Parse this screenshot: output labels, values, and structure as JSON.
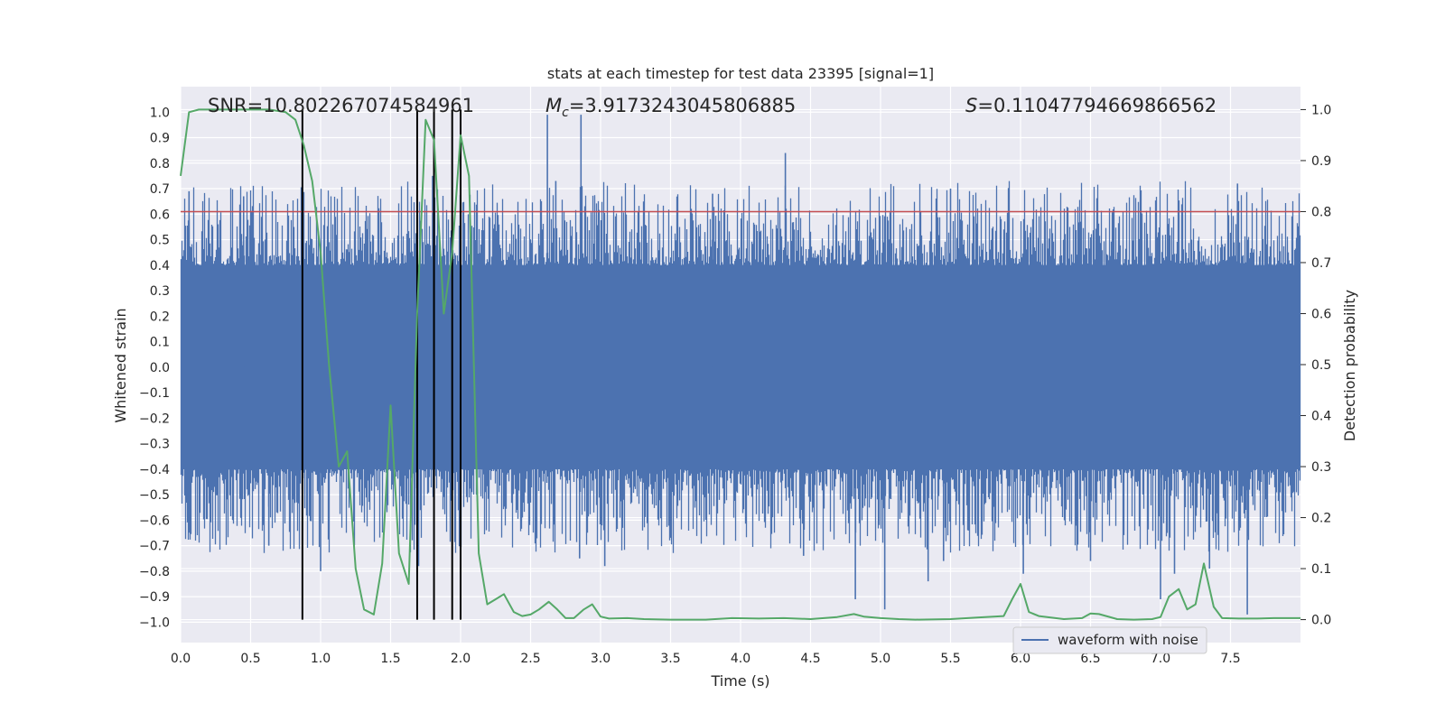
{
  "chart_data": {
    "type": "line",
    "title": "stats at each timestep for test data 23395 [signal=1]",
    "xlabel": "Time (s)",
    "ylabel": "Whitened strain",
    "y2label": "Detection probability",
    "xlim": [
      0.0,
      8.0
    ],
    "ylim": [
      -1.08,
      1.1
    ],
    "y2lim": [
      -0.045,
      1.045
    ],
    "xticks": [
      0.0,
      0.5,
      1.0,
      1.5,
      2.0,
      2.5,
      3.0,
      3.5,
      4.0,
      4.5,
      5.0,
      5.5,
      6.0,
      6.5,
      7.0,
      7.5
    ],
    "xtick_labels": [
      "0.0",
      "0.5",
      "1.0",
      "1.5",
      "2.0",
      "2.5",
      "3.0",
      "3.5",
      "4.0",
      "4.5",
      "5.0",
      "5.5",
      "6.0",
      "6.5",
      "7.0",
      "7.5"
    ],
    "yticks": [
      -1.0,
      -0.9,
      -0.8,
      -0.7,
      -0.6,
      -0.5,
      -0.4,
      -0.3,
      -0.2,
      -0.1,
      0.0,
      0.1,
      0.2,
      0.3,
      0.4,
      0.5,
      0.6,
      0.7,
      0.8,
      0.9,
      1.0
    ],
    "ytick_labels": [
      "−1.0",
      "−0.9",
      "−0.8",
      "−0.7",
      "−0.6",
      "−0.5",
      "−0.4",
      "−0.3",
      "−0.2",
      "−0.1",
      "0.0",
      "0.1",
      "0.2",
      "0.3",
      "0.4",
      "0.5",
      "0.6",
      "0.7",
      "0.8",
      "0.9",
      "1.0"
    ],
    "y2ticks": [
      0.0,
      0.1,
      0.2,
      0.3,
      0.4,
      0.5,
      0.6,
      0.7,
      0.8,
      0.9,
      1.0
    ],
    "y2tick_labels": [
      "0.0",
      "0.1",
      "0.2",
      "0.3",
      "0.4",
      "0.5",
      "0.6",
      "0.7",
      "0.8",
      "0.9",
      "1.0"
    ],
    "annotations": {
      "snr": "SNR=10.802267074584961",
      "mc_prefix": "M",
      "mc_sub": "c",
      "mc_value": "=3.9173243045806885",
      "s_prefix": "S",
      "s_value": "=0.11047794669866562"
    },
    "legend": {
      "label": "waveform with noise",
      "placement": "lower-right"
    },
    "threshold": {
      "value": 0.8,
      "color": "#c44e52"
    },
    "markers_x": [
      0.87,
      1.69,
      1.81,
      1.94,
      2.0
    ],
    "colors": {
      "waveform": "#4c72b0",
      "probability": "#55a868",
      "markers": "#000000",
      "background": "#eaeaf2"
    },
    "series": [
      {
        "name": "waveform with noise",
        "axis": "left",
        "base_noise_amplitude": 0.4,
        "spikes": [
          {
            "x": 2.62,
            "y": 0.99
          },
          {
            "x": 2.86,
            "y": 0.99
          },
          {
            "x": 4.32,
            "y": 0.84
          },
          {
            "x": 1.94,
            "y": 0.82
          },
          {
            "x": 1.8,
            "y": 0.75
          },
          {
            "x": 0.06,
            "y": 0.69
          },
          {
            "x": 0.45,
            "y": 0.67
          },
          {
            "x": 2.68,
            "y": 0.73
          },
          {
            "x": 3.8,
            "y": 0.68
          },
          {
            "x": 5.5,
            "y": 0.7
          },
          {
            "x": 7.55,
            "y": 0.72
          },
          {
            "x": 7.62,
            "y": -0.97
          },
          {
            "x": 5.03,
            "y": -0.95
          },
          {
            "x": 4.82,
            "y": -0.91
          },
          {
            "x": 5.34,
            "y": -0.84
          },
          {
            "x": 7.0,
            "y": -0.91
          },
          {
            "x": 1.0,
            "y": -0.8
          },
          {
            "x": 1.7,
            "y": -0.78
          },
          {
            "x": 2.85,
            "y": -0.75
          },
          {
            "x": 3.03,
            "y": -0.78
          },
          {
            "x": 4.45,
            "y": -0.74
          },
          {
            "x": 6.02,
            "y": -0.81
          },
          {
            "x": 6.5,
            "y": -0.76
          },
          {
            "x": 7.1,
            "y": -0.81
          },
          {
            "x": 7.35,
            "y": -0.79
          },
          {
            "x": 5.45,
            "y": -0.76
          },
          {
            "x": 0.63,
            "y": -0.7
          }
        ]
      },
      {
        "name": "detection probability",
        "axis": "right",
        "points": [
          [
            0.0,
            0.87
          ],
          [
            0.06,
            0.995
          ],
          [
            0.13,
            1.0
          ],
          [
            0.25,
            1.0
          ],
          [
            0.38,
            1.0
          ],
          [
            0.5,
            1.0
          ],
          [
            0.63,
            1.0
          ],
          [
            0.75,
            0.995
          ],
          [
            0.82,
            0.98
          ],
          [
            0.88,
            0.93
          ],
          [
            0.94,
            0.86
          ],
          [
            1.0,
            0.72
          ],
          [
            1.06,
            0.5
          ],
          [
            1.13,
            0.3
          ],
          [
            1.19,
            0.33
          ],
          [
            1.25,
            0.1
          ],
          [
            1.31,
            0.02
          ],
          [
            1.38,
            0.01
          ],
          [
            1.44,
            0.11
          ],
          [
            1.5,
            0.42
          ],
          [
            1.56,
            0.13
          ],
          [
            1.63,
            0.07
          ],
          [
            1.69,
            0.6
          ],
          [
            1.75,
            0.98
          ],
          [
            1.81,
            0.94
          ],
          [
            1.88,
            0.6
          ],
          [
            1.94,
            0.72
          ],
          [
            2.0,
            0.95
          ],
          [
            2.06,
            0.87
          ],
          [
            2.13,
            0.13
          ],
          [
            2.19,
            0.03
          ],
          [
            2.25,
            0.04
          ],
          [
            2.31,
            0.05
          ],
          [
            2.38,
            0.015
          ],
          [
            2.44,
            0.007
          ],
          [
            2.5,
            0.01
          ],
          [
            2.56,
            0.02
          ],
          [
            2.63,
            0.035
          ],
          [
            2.69,
            0.02
          ],
          [
            2.75,
            0.003
          ],
          [
            2.81,
            0.003
          ],
          [
            2.88,
            0.02
          ],
          [
            2.94,
            0.03
          ],
          [
            3.0,
            0.006
          ],
          [
            3.06,
            0.002
          ],
          [
            3.19,
            0.003
          ],
          [
            3.31,
            0.001
          ],
          [
            3.5,
            0.0
          ],
          [
            3.75,
            0.0
          ],
          [
            3.94,
            0.003
          ],
          [
            4.13,
            0.002
          ],
          [
            4.31,
            0.003
          ],
          [
            4.5,
            0.001
          ],
          [
            4.69,
            0.005
          ],
          [
            4.81,
            0.011
          ],
          [
            4.88,
            0.006
          ],
          [
            5.0,
            0.003
          ],
          [
            5.13,
            0.001
          ],
          [
            5.25,
            0.0
          ],
          [
            5.5,
            0.001
          ],
          [
            5.69,
            0.004
          ],
          [
            5.88,
            0.007
          ],
          [
            5.94,
            0.04
          ],
          [
            6.0,
            0.07
          ],
          [
            6.06,
            0.015
          ],
          [
            6.13,
            0.007
          ],
          [
            6.31,
            0.001
          ],
          [
            6.44,
            0.003
          ],
          [
            6.5,
            0.012
          ],
          [
            6.56,
            0.011
          ],
          [
            6.69,
            0.001
          ],
          [
            6.81,
            0.0
          ],
          [
            6.94,
            0.001
          ],
          [
            7.0,
            0.005
          ],
          [
            7.06,
            0.045
          ],
          [
            7.13,
            0.06
          ],
          [
            7.19,
            0.02
          ],
          [
            7.25,
            0.03
          ],
          [
            7.31,
            0.11
          ],
          [
            7.38,
            0.025
          ],
          [
            7.44,
            0.003
          ],
          [
            7.56,
            0.002
          ],
          [
            7.69,
            0.002
          ],
          [
            7.81,
            0.003
          ],
          [
            7.94,
            0.003
          ],
          [
            8.0,
            0.003
          ]
        ]
      }
    ]
  }
}
